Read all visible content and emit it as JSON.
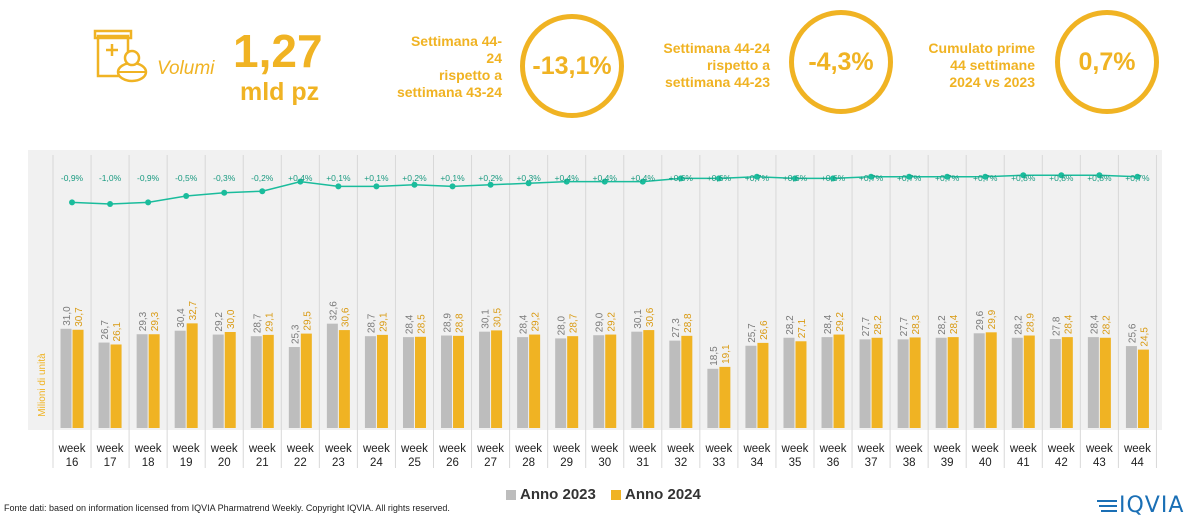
{
  "header": {
    "volumi_label": "Volumi",
    "volume_value": "1,27",
    "volume_unit": "mld pz",
    "kpis": [
      {
        "label_lines": [
          "Settimana 44-",
          "24",
          "rispetto a",
          "settimana 43-24"
        ],
        "value": "-13,1%"
      },
      {
        "label_lines": [
          "Settimana 44-24",
          "rispetto a",
          "settimana 44-23"
        ],
        "value": "-4,3%"
      },
      {
        "label_lines": [
          "Cumulato prime",
          "44 settimane",
          "2024 vs 2023"
        ],
        "value": "0,7%"
      }
    ]
  },
  "footer": {
    "source": "Fonte dati: based on information licensed from IQVIA Pharmatrend Weekly. Copyright IQVIA. All rights reserved.",
    "logo_text": "IQVIA"
  },
  "colors": {
    "series_2023": "#bdbdbd",
    "series_2024": "#f0b323",
    "line": "#1abc9c",
    "accent": "#f0b323"
  },
  "chart_data": {
    "type": "bar",
    "ylabel": "Milioni di unità",
    "categories": [
      "week 16",
      "week 17",
      "week 18",
      "week 19",
      "week 20",
      "week 21",
      "week 22",
      "week 23",
      "week 24",
      "week 25",
      "week 26",
      "week 27",
      "week 28",
      "week 29",
      "week 30",
      "week 31",
      "week 32",
      "week 33",
      "week 34",
      "week 35",
      "week 36",
      "week 37",
      "week 38",
      "week 39",
      "week 40",
      "week 41",
      "week 42",
      "week 43",
      "week 44"
    ],
    "series": [
      {
        "name": "Anno 2023",
        "values": [
          31.0,
          26.7,
          29.3,
          30.4,
          29.2,
          28.7,
          25.3,
          32.6,
          28.7,
          28.4,
          28.9,
          30.1,
          28.4,
          28.0,
          29.0,
          30.1,
          27.3,
          18.5,
          25.7,
          28.2,
          28.4,
          27.7,
          27.7,
          28.2,
          29.6,
          28.2,
          27.8,
          28.4,
          25.6
        ],
        "labels": [
          "31,0",
          "26,7",
          "29,3",
          "30,4",
          "29,2",
          "28,7",
          "25,3",
          "32,6",
          "28,7",
          "28,4",
          "28,9",
          "30,1",
          "28,4",
          "28,0",
          "29,0",
          "30,1",
          "27,3",
          "18,5",
          "25,7",
          "28,2",
          "28,4",
          "27,7",
          "27,7",
          "28,2",
          "29,6",
          "28,2",
          "27,8",
          "28,4",
          "25,6"
        ]
      },
      {
        "name": "Anno 2024",
        "values": [
          30.7,
          26.1,
          29.3,
          32.7,
          30.0,
          29.1,
          29.5,
          30.6,
          29.1,
          28.5,
          28.8,
          30.5,
          29.2,
          28.7,
          29.2,
          30.6,
          28.8,
          19.1,
          26.6,
          27.1,
          29.2,
          28.2,
          28.3,
          28.4,
          29.9,
          28.9,
          28.4,
          28.2,
          24.5
        ],
        "labels": [
          "30,7",
          "26,1",
          "29,3",
          "32,7",
          "30,0",
          "29,1",
          "29,5",
          "30,6",
          "29,1",
          "28,5",
          "28,8",
          "30,5",
          "29,2",
          "28,7",
          "29,2",
          "30,6",
          "28,8",
          "19,1",
          "26,6",
          "27,1",
          "29,2",
          "28,2",
          "28,3",
          "28,4",
          "29,9",
          "28,9",
          "28,4",
          "28,2",
          "24,5"
        ]
      }
    ],
    "cumulative_change": {
      "values": [
        -0.9,
        -1.0,
        -0.9,
        -0.5,
        -0.3,
        -0.2,
        0.4,
        0.1,
        0.1,
        0.2,
        0.1,
        0.2,
        0.3,
        0.4,
        0.4,
        0.4,
        0.6,
        0.6,
        0.7,
        0.6,
        0.6,
        0.7,
        0.7,
        0.7,
        0.7,
        0.8,
        0.8,
        0.8,
        0.7
      ],
      "labels": [
        "-0,9%",
        "-1,0%",
        "-0,9%",
        "-0,5%",
        "-0,3%",
        "-0,2%",
        "+0,4%",
        "+0,1%",
        "+0,1%",
        "+0,2%",
        "+0,1%",
        "+0,2%",
        "+0,3%",
        "+0,4%",
        "+0,4%",
        "+0,4%",
        "+0,6%",
        "+0,6%",
        "+0,7%",
        "+0,6%",
        "+0,6%",
        "+0,7%",
        "+0,7%",
        "+0,7%",
        "+0,7%",
        "+0,8%",
        "+0,8%",
        "+0,8%",
        "+0,7%"
      ]
    },
    "legend_position": "bottom",
    "grid": false
  }
}
